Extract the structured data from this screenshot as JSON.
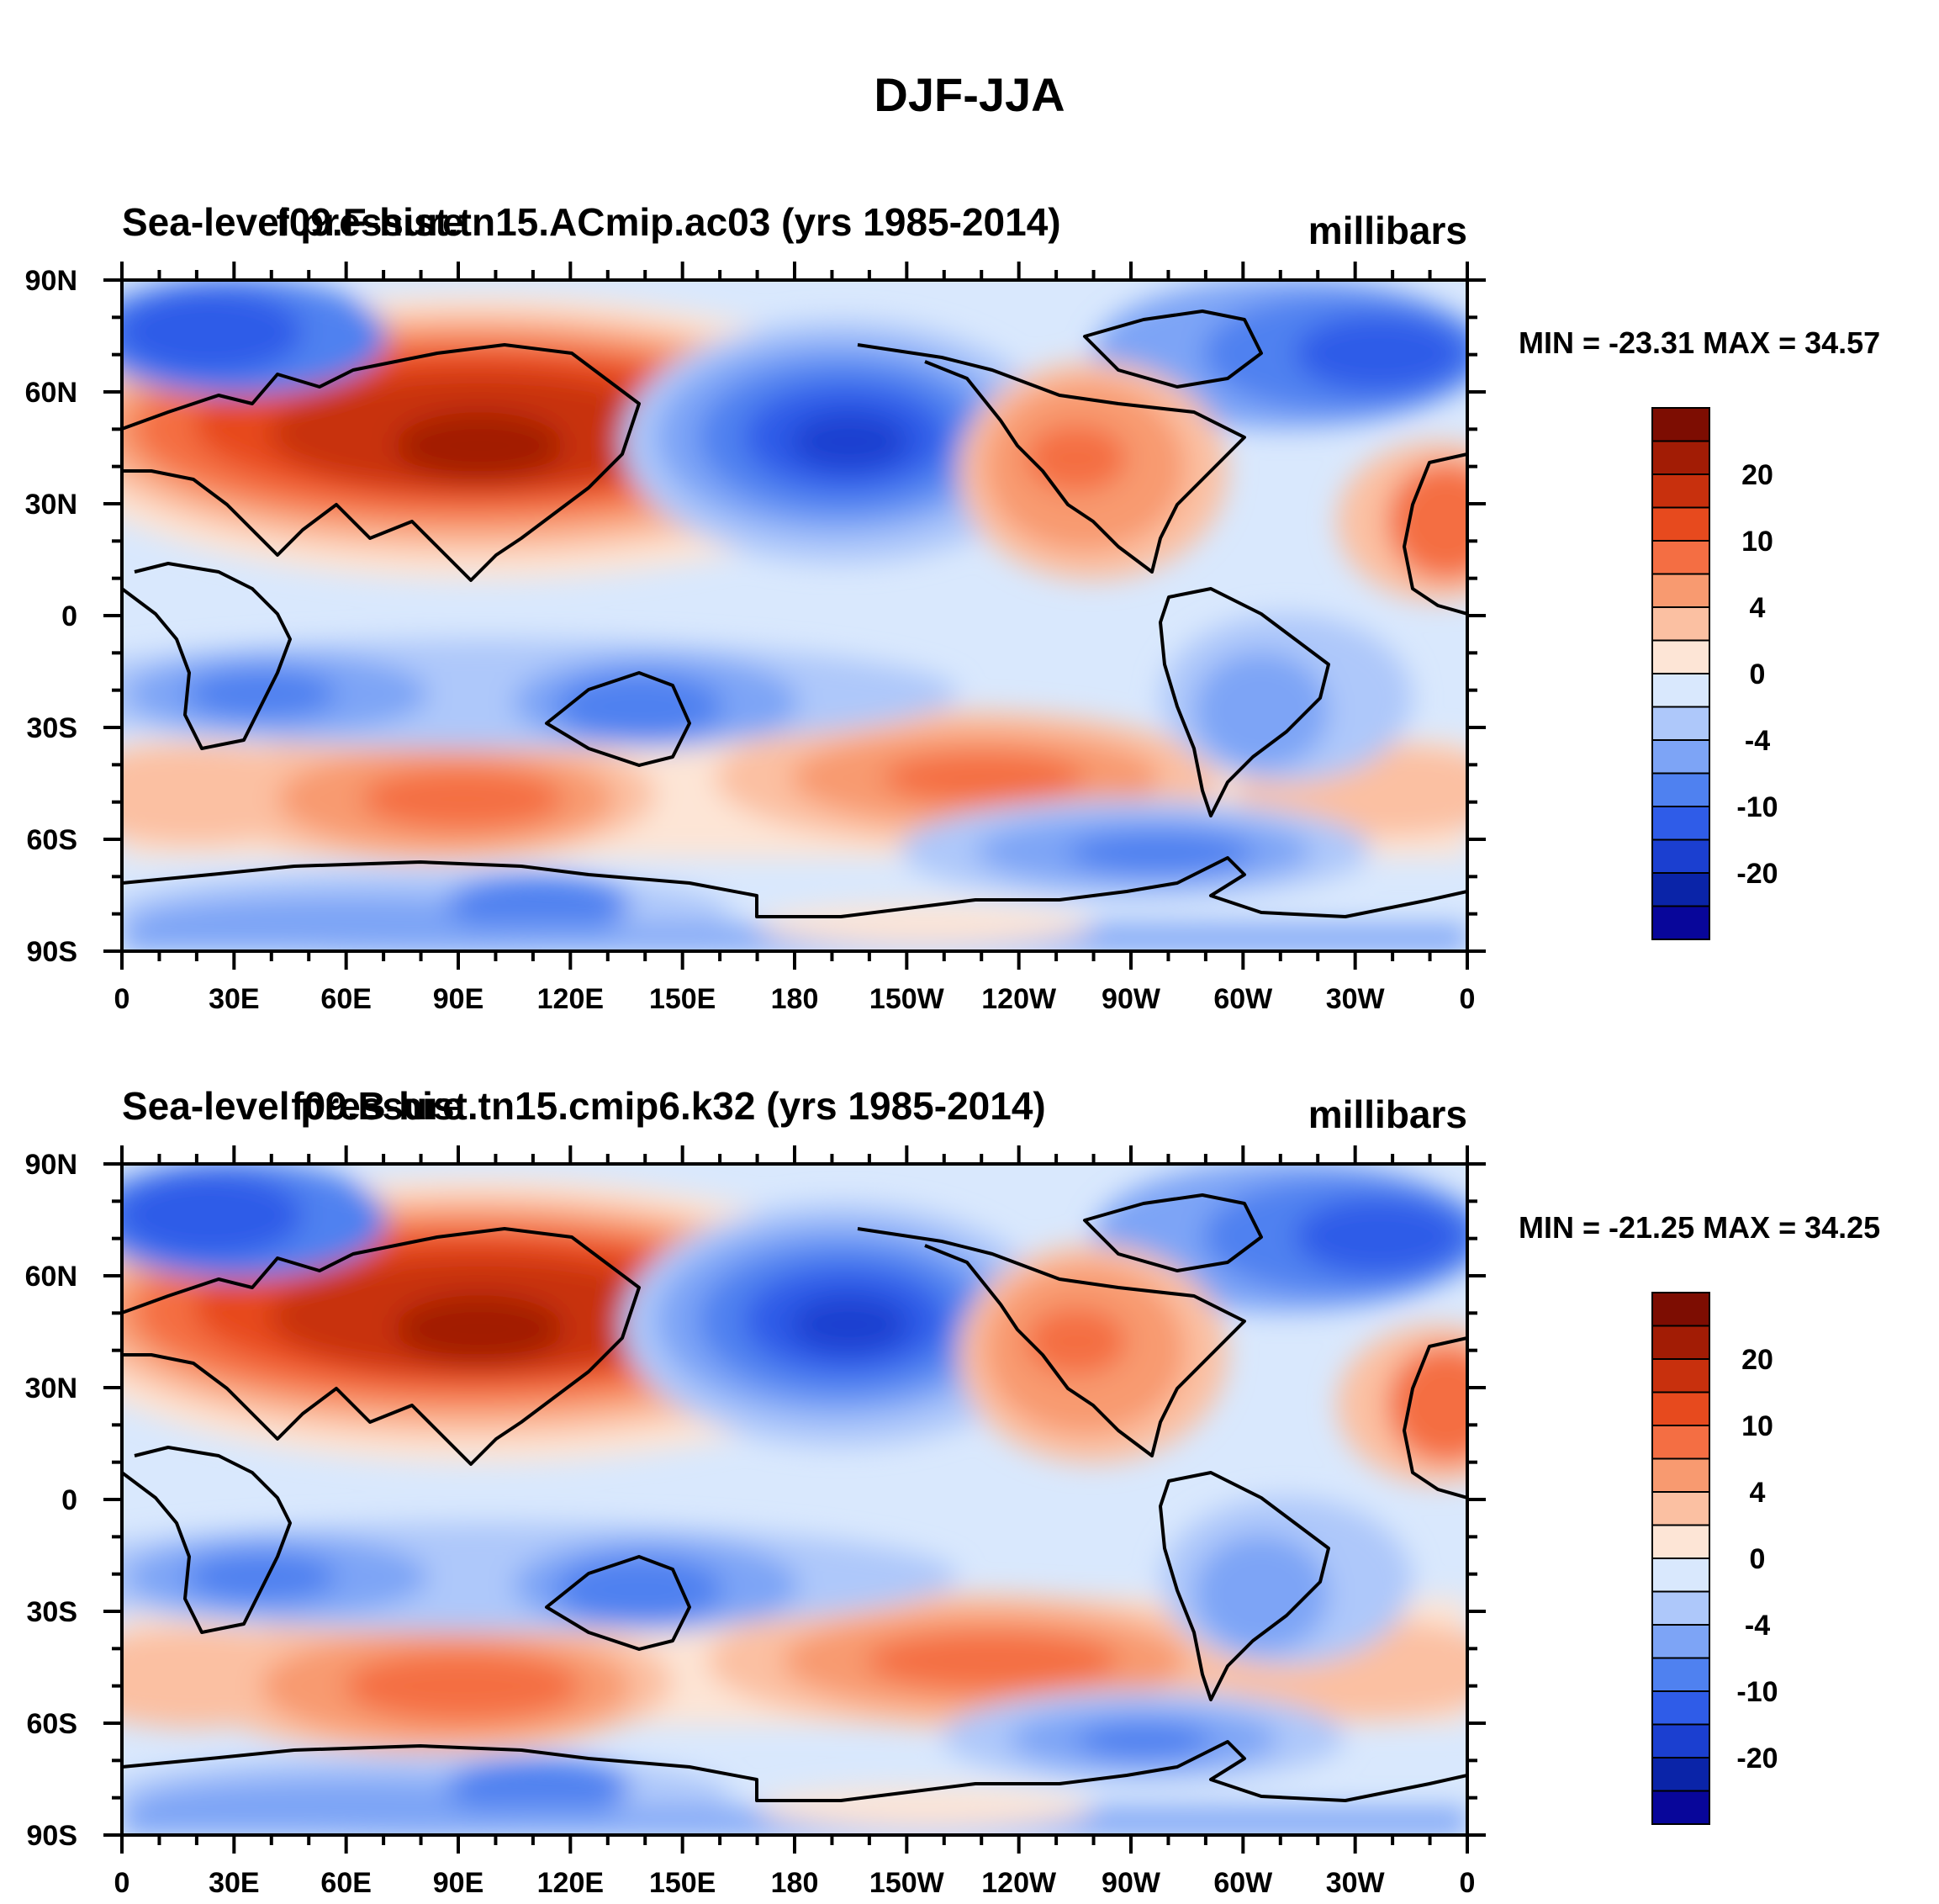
{
  "figure_title": "DJF-JJA",
  "colorbar": {
    "colors": [
      "#08069a",
      "#0a24a8",
      "#1b3fd0",
      "#2f5ce8",
      "#4f81f0",
      "#7da4f6",
      "#aec8fa",
      "#d9e8fd",
      "#fde5d6",
      "#fbc0a2",
      "#f89a70",
      "#f46e43",
      "#e74a1e",
      "#c8300d",
      "#a21c05",
      "#7d0d02"
    ],
    "labels": [
      "-20",
      "-10",
      "-4",
      "0",
      "4",
      "10",
      "20"
    ],
    "label_bins": [
      2,
      4,
      6,
      8,
      10,
      12,
      14
    ]
  },
  "chart_data": [
    {
      "type": "contour-map",
      "title_left": "Sea-level pressure",
      "title_center": "f09.F-hist.tn15.ACmip.ac03 (yrs 1985-2014)",
      "units": "millibars",
      "min_max": "MIN = -23.31 MAX =  34.57",
      "min": -23.31,
      "max": 34.57,
      "x_ticks": [
        "0",
        "30E",
        "60E",
        "90E",
        "120E",
        "150E",
        "180",
        "150W",
        "120W",
        "90W",
        "60W",
        "30W",
        "0"
      ],
      "y_ticks": [
        "90N",
        "60N",
        "30N",
        "0",
        "30S",
        "60S",
        "90S"
      ],
      "x_range": [
        0,
        360
      ],
      "y_range": [
        -90,
        90
      ]
    },
    {
      "type": "contour-map",
      "title_left": "Sea-level pressure",
      "title_center": "f09.B-hist.tn15.cmip6.k32 (yrs 1985-2014)",
      "units": "millibars",
      "min_max": "MIN = -21.25 MAX =  34.25",
      "min": -21.25,
      "max": 34.25,
      "x_ticks": [
        "0",
        "30E",
        "60E",
        "90E",
        "120E",
        "150E",
        "180",
        "150W",
        "120W",
        "90W",
        "60W",
        "30W",
        "0"
      ],
      "y_ticks": [
        "90N",
        "60N",
        "30N",
        "0",
        "30S",
        "60S",
        "90S"
      ],
      "x_range": [
        0,
        360
      ],
      "y_range": [
        -90,
        90
      ]
    }
  ]
}
